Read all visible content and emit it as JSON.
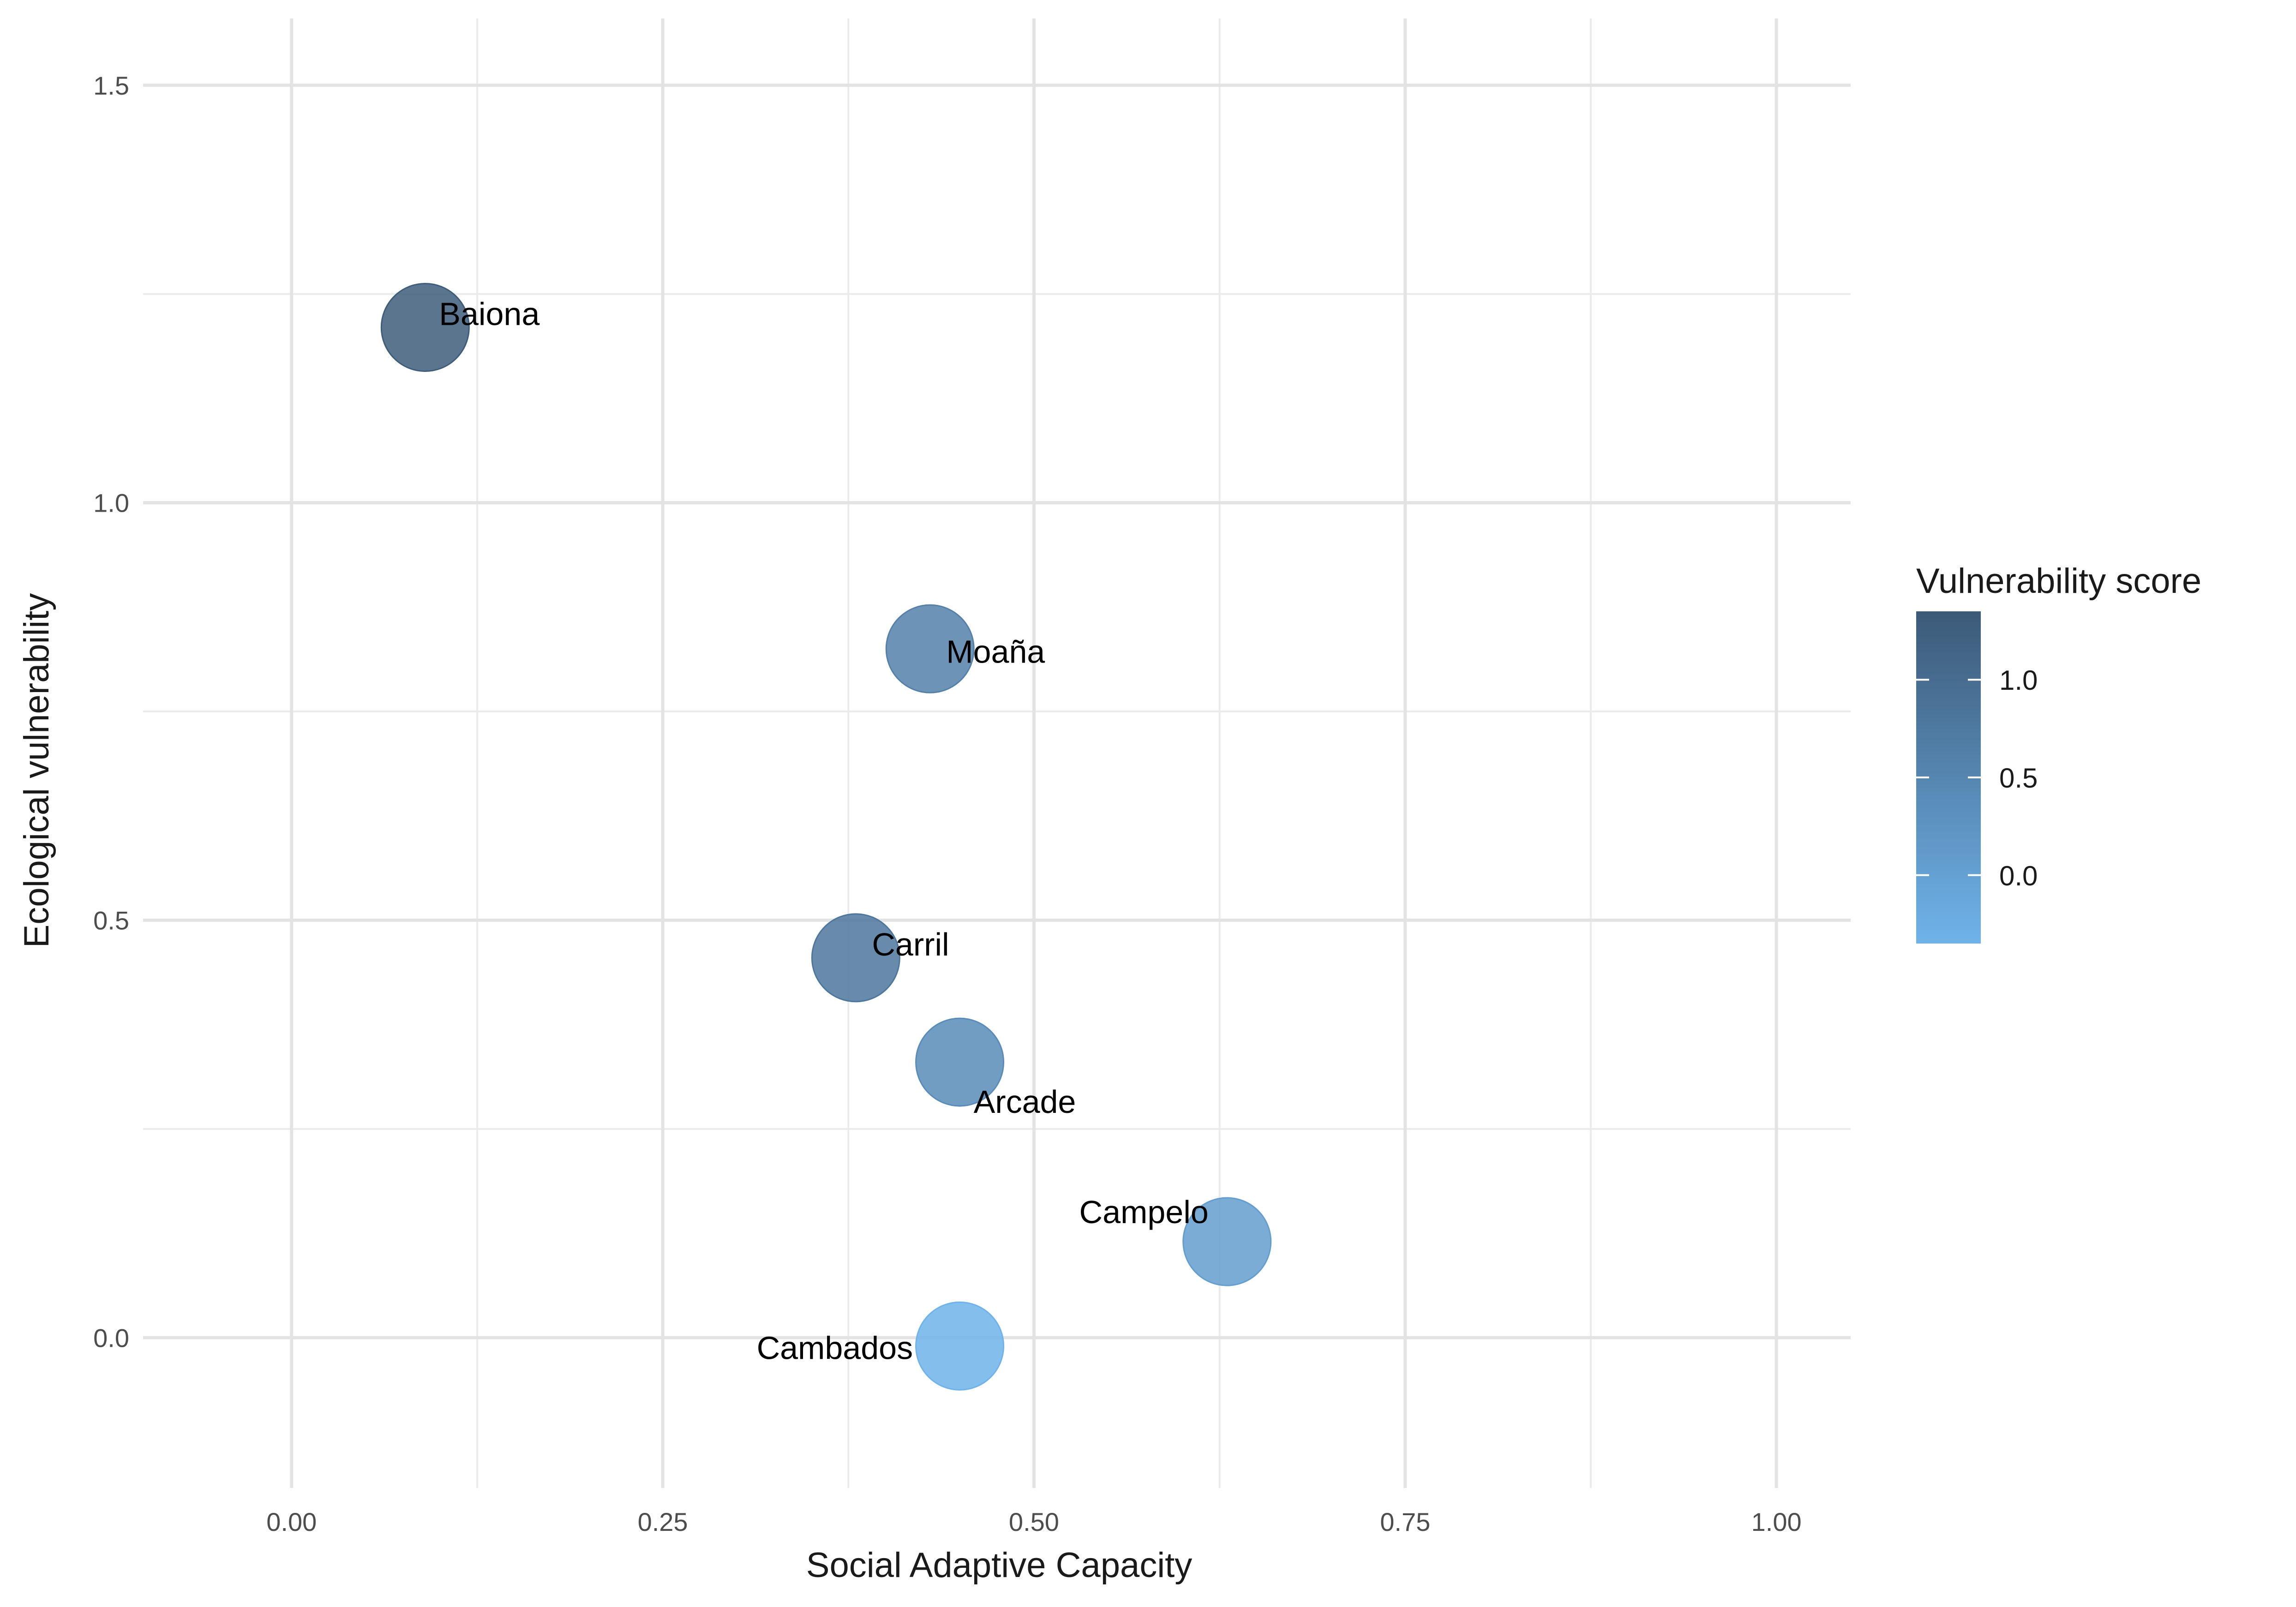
{
  "chart_data": {
    "type": "scatter",
    "xlabel": "Social Adaptive Capacity",
    "ylabel": "Ecological vulnerability",
    "xlim": [
      -0.1,
      1.05
    ],
    "ylim": [
      -0.18,
      1.58
    ],
    "x_ticks": [
      0.0,
      0.25,
      0.5,
      0.75,
      1.0
    ],
    "x_tick_labels": [
      "0.00",
      "0.25",
      "0.50",
      "0.75",
      "1.00"
    ],
    "y_ticks": [
      0.0,
      0.5,
      1.0,
      1.5
    ],
    "y_tick_labels": [
      "0.0",
      "0.5",
      "1.0",
      "1.5"
    ],
    "grid": true,
    "points": [
      {
        "label": "Baiona",
        "x": 0.09,
        "y": 1.21,
        "score": 1.3
      },
      {
        "label": "Moaña",
        "x": 0.43,
        "y": 0.825,
        "score": 0.6
      },
      {
        "label": "Carril",
        "x": 0.38,
        "y": 0.455,
        "score": 0.8
      },
      {
        "label": "Arcade",
        "x": 0.45,
        "y": 0.33,
        "score": 0.4
      },
      {
        "label": "Campelo",
        "x": 0.63,
        "y": 0.115,
        "score": 0.05
      },
      {
        "label": "Cambados",
        "x": 0.45,
        "y": -0.01,
        "score": -0.35
      }
    ],
    "legend": {
      "title": "Vulnerability score",
      "position": "right",
      "min": -0.35,
      "max": 1.35,
      "ticks": [
        1.0,
        0.5,
        0.0
      ],
      "tick_labels": [
        "1.0",
        "0.5",
        "0.0"
      ],
      "color_high": "#3d5a78",
      "color_low": "#6fb3ea"
    }
  }
}
